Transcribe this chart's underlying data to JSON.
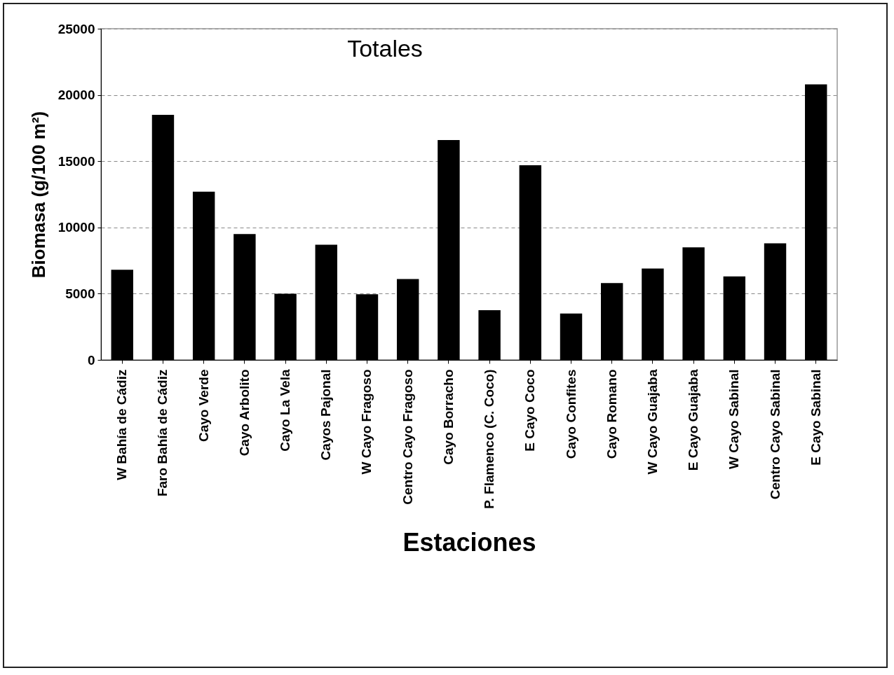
{
  "chart_data": {
    "type": "bar",
    "title": "Totales",
    "xlabel": "Estaciones",
    "ylabel": "Biomasa (g/100 m²)",
    "categories": [
      "W Bahía de Cádiz",
      "Faro Bahía de Cádiz",
      "Cayo Verde",
      "Cayo Arbolito",
      "Cayo La Vela",
      "Cayos Pajonal",
      "W Cayo Fragoso",
      "Centro Cayo Fragoso",
      "Cayo Borracho",
      "P. Flamenco (C. Coco)",
      "E Cayo Coco",
      "Cayo Confites",
      "Cayo Romano",
      "W Cayo Guajaba",
      "E Cayo Guajaba",
      "W Cayo Sabinal",
      "Centro Cayo Sabinal",
      "E Cayo Sabinal"
    ],
    "values": [
      6800,
      18500,
      12700,
      9500,
      5000,
      8700,
      4950,
      6100,
      16600,
      3750,
      14700,
      3500,
      5800,
      6900,
      8500,
      6300,
      8800,
      20800
    ],
    "color": "#000000",
    "ylim": [
      0,
      25000
    ],
    "yticks": [
      0,
      5000,
      10000,
      15000,
      20000,
      25000
    ],
    "grid": "y"
  }
}
